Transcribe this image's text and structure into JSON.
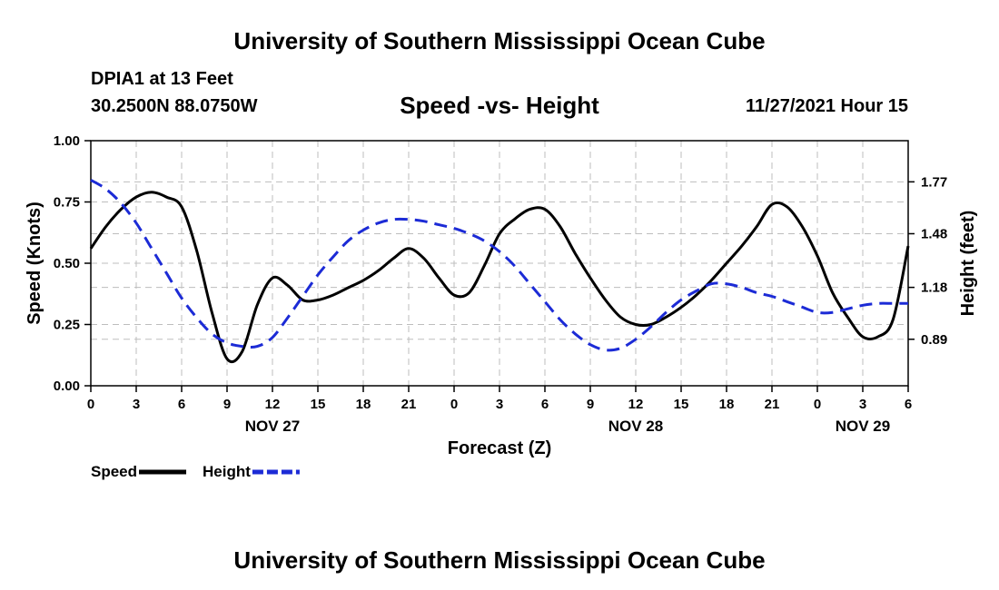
{
  "header": {
    "title": "University of Southern Mississippi Ocean Cube",
    "station": "DPIA1 at 13 Feet",
    "coordinates": "30.2500N  88.0750W",
    "datetime": "11/27/2021 Hour 15"
  },
  "footer": {
    "title": "University of Southern Mississippi Ocean Cube"
  },
  "chart_data": {
    "type": "line",
    "title": "Speed -vs- Height",
    "xlabel": "Forecast (Z)",
    "ylabel_left": "Speed (Knots)",
    "ylabel_right": "Height (feet)",
    "x_range": [
      0,
      54
    ],
    "x_ticks": [
      {
        "h": 0,
        "label": "0"
      },
      {
        "h": 3,
        "label": "3"
      },
      {
        "h": 6,
        "label": "6"
      },
      {
        "h": 9,
        "label": "9"
      },
      {
        "h": 12,
        "label": "12"
      },
      {
        "h": 15,
        "label": "15"
      },
      {
        "h": 18,
        "label": "18"
      },
      {
        "h": 21,
        "label": "21"
      },
      {
        "h": 24,
        "label": "0"
      },
      {
        "h": 27,
        "label": "3"
      },
      {
        "h": 30,
        "label": "6"
      },
      {
        "h": 33,
        "label": "9"
      },
      {
        "h": 36,
        "label": "12"
      },
      {
        "h": 39,
        "label": "15"
      },
      {
        "h": 42,
        "label": "18"
      },
      {
        "h": 45,
        "label": "21"
      },
      {
        "h": 48,
        "label": "0"
      },
      {
        "h": 51,
        "label": "3"
      },
      {
        "h": 54,
        "label": "6"
      }
    ],
    "date_labels": [
      {
        "h": 12,
        "label": "NOV 27"
      },
      {
        "h": 36,
        "label": "NOV 28"
      },
      {
        "h": 51,
        "label": "NOV 29"
      }
    ],
    "y_left": {
      "range": [
        0,
        1
      ],
      "ticks": [
        0,
        0.25,
        0.5,
        0.75,
        1.0
      ],
      "tick_labels": [
        "0.00",
        "0.25",
        "0.50",
        "0.75",
        "1.00"
      ]
    },
    "y_right": {
      "range": [
        0.63,
        2.0
      ],
      "ticks": [
        0.89,
        1.18,
        1.48,
        1.77
      ],
      "tick_labels": [
        "0.89",
        "1.18",
        "1.48",
        "1.77"
      ]
    },
    "series": [
      {
        "name": "Speed",
        "axis": "left",
        "color": "#000000",
        "dashed": false,
        "x": [
          0,
          1,
          2,
          3,
          4,
          5,
          6,
          7,
          8,
          9,
          10,
          11,
          12,
          13,
          14,
          15,
          16,
          17,
          18,
          19,
          20,
          21,
          22,
          23,
          24,
          25,
          26,
          27,
          28,
          29,
          30,
          31,
          32,
          33,
          34,
          35,
          36,
          37,
          38,
          39,
          40,
          41,
          42,
          43,
          44,
          45,
          46,
          47,
          48,
          49,
          50,
          51,
          52,
          53,
          54
        ],
        "values": [
          0.56,
          0.65,
          0.72,
          0.77,
          0.79,
          0.77,
          0.73,
          0.55,
          0.3,
          0.11,
          0.14,
          0.33,
          0.44,
          0.41,
          0.35,
          0.35,
          0.37,
          0.4,
          0.43,
          0.47,
          0.52,
          0.56,
          0.52,
          0.44,
          0.37,
          0.38,
          0.49,
          0.62,
          0.68,
          0.72,
          0.72,
          0.65,
          0.54,
          0.44,
          0.35,
          0.28,
          0.25,
          0.25,
          0.28,
          0.32,
          0.37,
          0.43,
          0.5,
          0.57,
          0.65,
          0.74,
          0.73,
          0.65,
          0.53,
          0.38,
          0.28,
          0.2,
          0.2,
          0.27,
          0.57
        ]
      },
      {
        "name": "Height",
        "axis": "right",
        "color": "#1c2bd6",
        "dashed": true,
        "x": [
          0,
          1,
          2,
          3,
          4,
          5,
          6,
          7,
          8,
          9,
          10,
          11,
          12,
          13,
          14,
          15,
          16,
          17,
          18,
          19,
          20,
          21,
          22,
          23,
          24,
          25,
          26,
          27,
          28,
          29,
          30,
          31,
          32,
          33,
          34,
          35,
          36,
          37,
          38,
          39,
          40,
          41,
          42,
          43,
          44,
          45,
          46,
          47,
          48,
          49,
          50,
          51,
          52,
          53,
          54
        ],
        "values": [
          1.78,
          1.73,
          1.65,
          1.54,
          1.4,
          1.26,
          1.12,
          1.01,
          0.92,
          0.87,
          0.85,
          0.85,
          0.9,
          1.01,
          1.13,
          1.25,
          1.35,
          1.44,
          1.5,
          1.54,
          1.56,
          1.56,
          1.55,
          1.53,
          1.51,
          1.48,
          1.44,
          1.38,
          1.3,
          1.2,
          1.1,
          1.0,
          0.92,
          0.86,
          0.83,
          0.84,
          0.89,
          0.96,
          1.04,
          1.11,
          1.16,
          1.2,
          1.2,
          1.18,
          1.15,
          1.13,
          1.1,
          1.07,
          1.04,
          1.04,
          1.06,
          1.08,
          1.09,
          1.09,
          1.09
        ]
      }
    ],
    "legend": [
      {
        "label": "Speed",
        "color": "#000000",
        "dashed": false
      },
      {
        "label": "Height",
        "color": "#1c2bd6",
        "dashed": true
      }
    ]
  }
}
